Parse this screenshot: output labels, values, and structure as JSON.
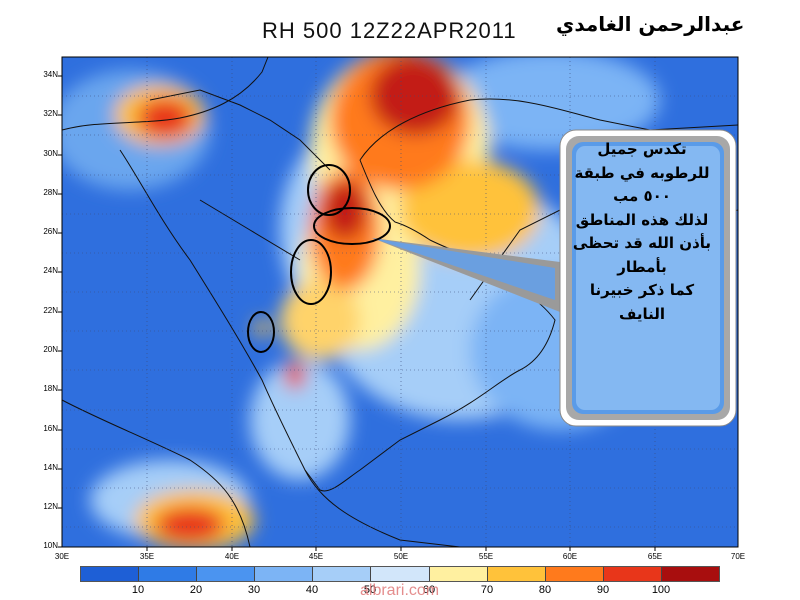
{
  "header": {
    "title": "RH 500 12Z22APR2011",
    "author": "عبدالرحمن الغامدي"
  },
  "map": {
    "lat_labels": [
      "34N",
      "32N",
      "30N",
      "28N",
      "26N",
      "24N",
      "22N",
      "20N",
      "18N",
      "16N",
      "14N",
      "12N",
      "10N"
    ],
    "lon_labels": [
      "30E",
      "35E",
      "40E",
      "45E",
      "50E",
      "55E",
      "60E",
      "65E",
      "70E"
    ],
    "field": "Relative humidity at 500 hPa",
    "valid_time": "12Z22APR2011"
  },
  "callout": {
    "lines": [
      "تكدس جميل",
      "للرطوبه في طبقة",
      "٥٠٠ مب",
      "لذلك هذه المناطق",
      "بأذن الله قد تحظى",
      "بأمطار",
      "كما ذكر خبيرنا",
      "النايف"
    ]
  },
  "colorbar": {
    "labels": [
      "10",
      "20",
      "30",
      "40",
      "50",
      "60",
      "70",
      "80",
      "90",
      "100"
    ],
    "colors": [
      "#1e5fd6",
      "#2f7be6",
      "#4b94f0",
      "#7cb4f5",
      "#a6cef8",
      "#d2e6fa",
      "#fff0a0",
      "#ffc23a",
      "#ff7a1c",
      "#e8361a",
      "#a80e0e"
    ]
  },
  "watermark": "albrari.com"
}
